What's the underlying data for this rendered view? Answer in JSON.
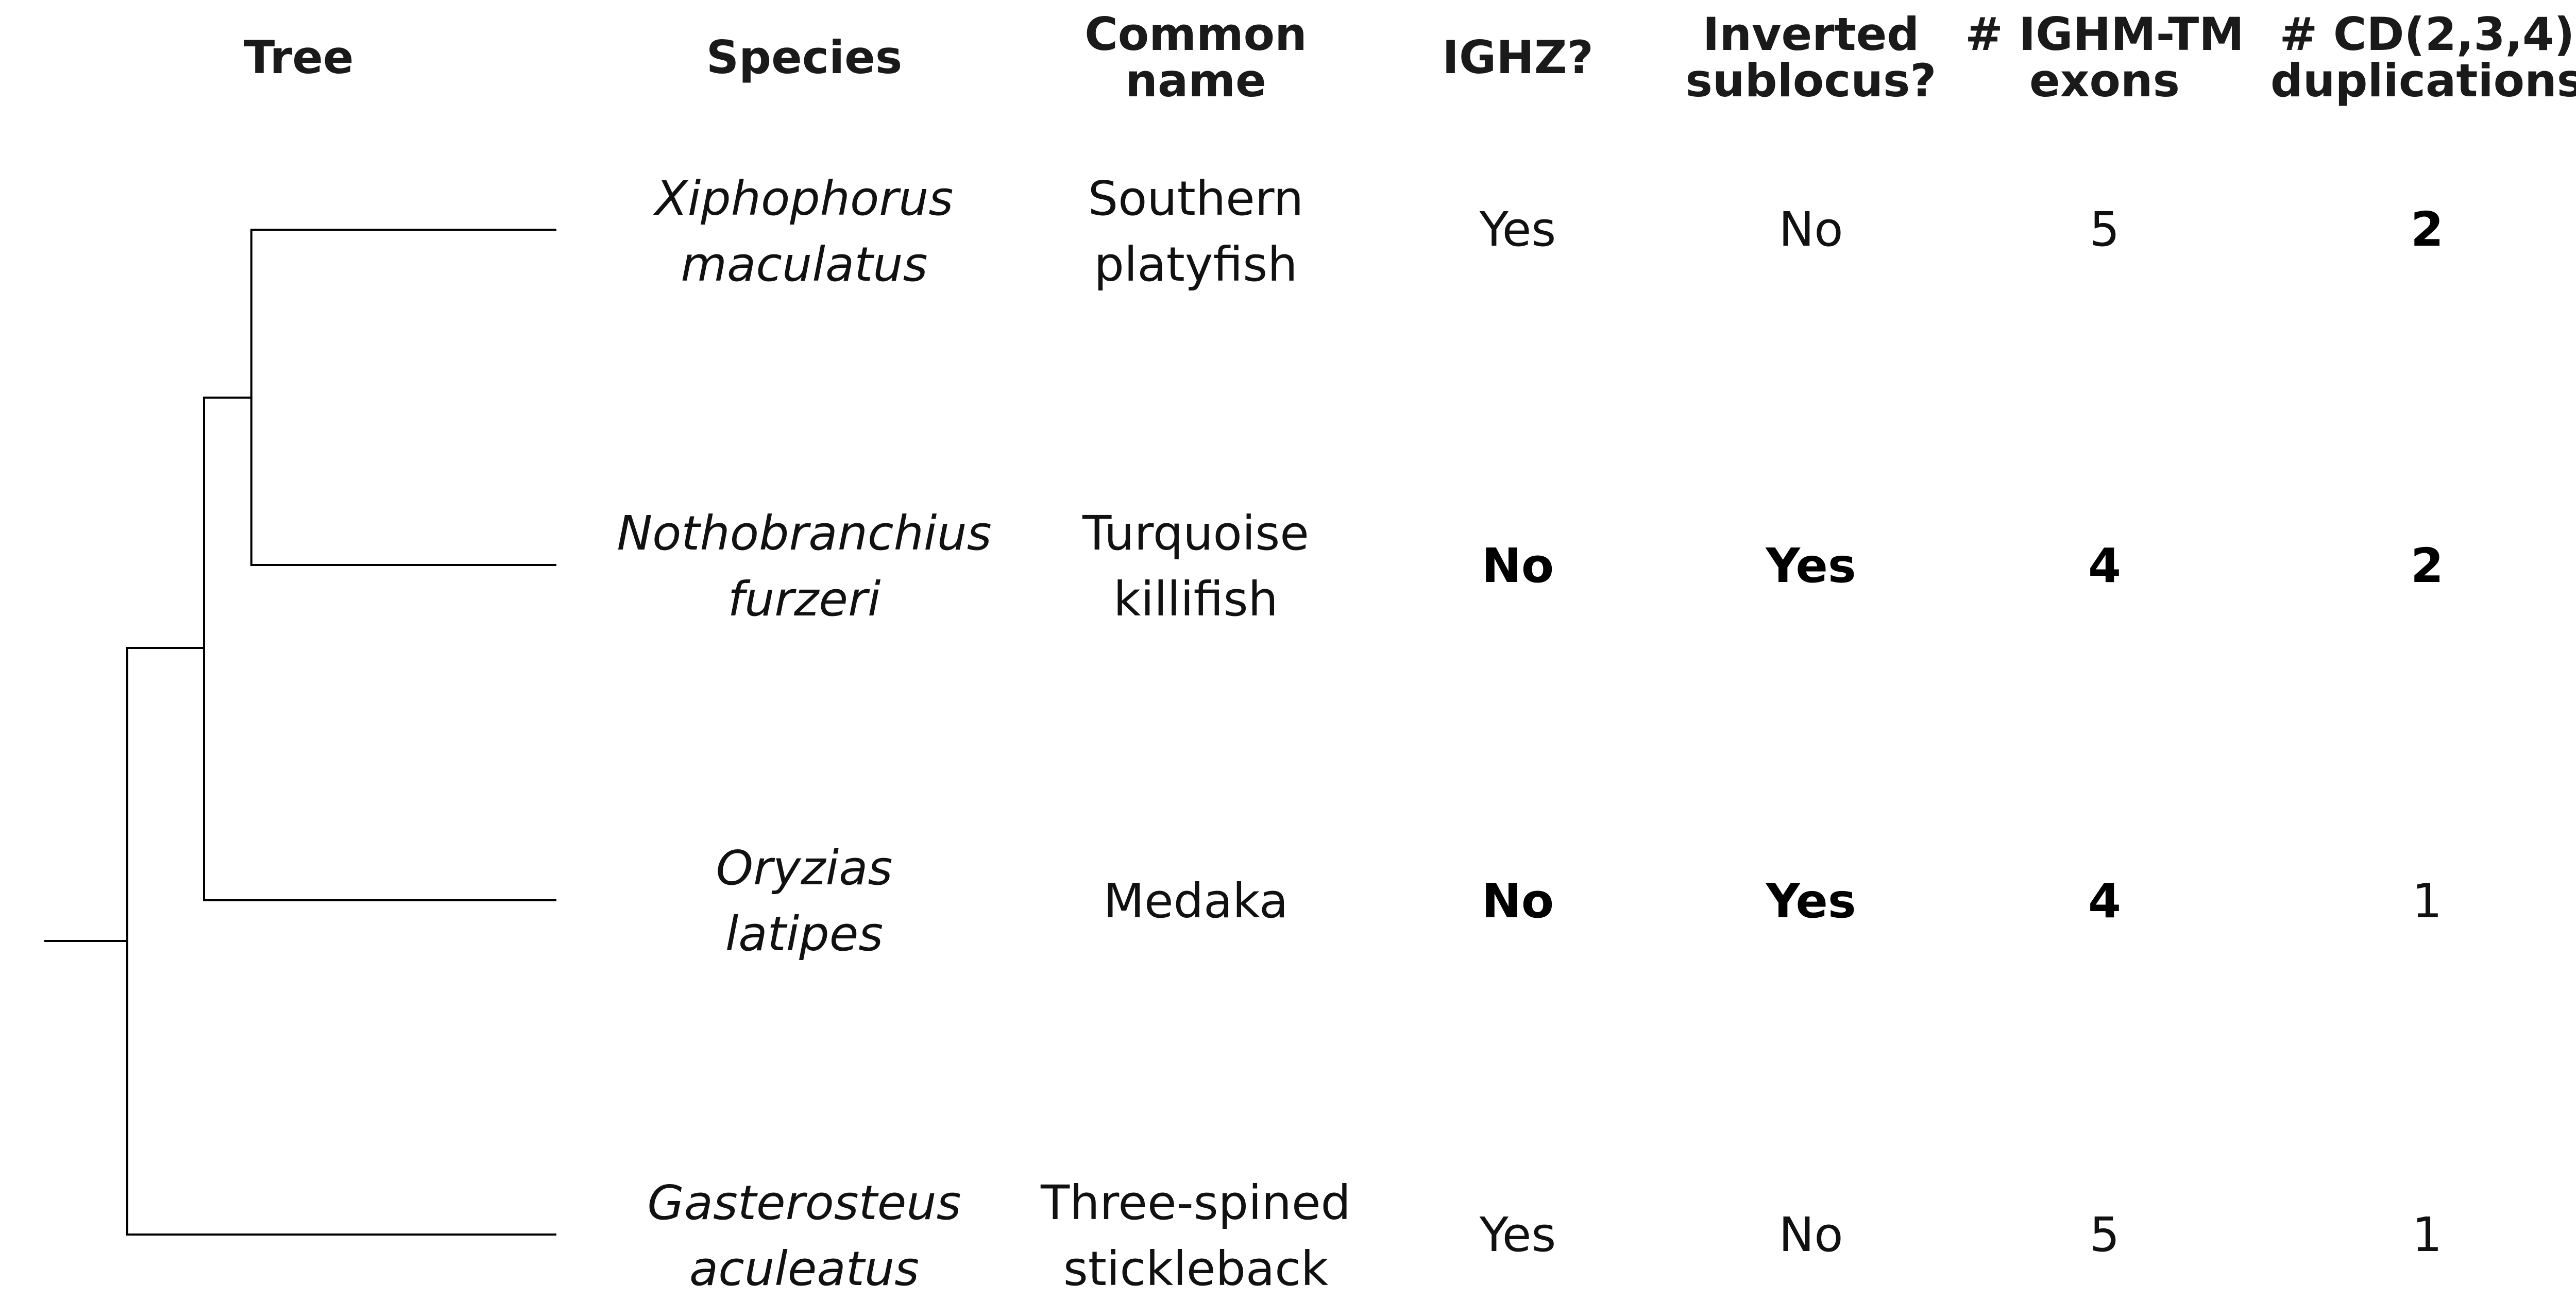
{
  "headers": {
    "tree": "Tree",
    "species": "Species",
    "common_line1": "Common",
    "common_line2": "name",
    "ighz": "IGHZ?",
    "inverted_line1": "Inverted",
    "inverted_line2": "sublocus?",
    "ighm_line1": "# IGHM-TM",
    "ighm_line2": "exons",
    "cd_line1": "# CD(2,3,4)",
    "cd_line2": "duplications"
  },
  "rows": [
    {
      "genus": "Xiphophorus",
      "species": "maculatus",
      "common_line1": "Southern",
      "common_line2": "platyfish",
      "ighz": "Yes",
      "inverted": "No",
      "ighm_exons": "5",
      "cd_dups": "2"
    },
    {
      "genus": "Nothobranchius",
      "species": "furzeri",
      "common_line1": "Turquoise",
      "common_line2": "killifish",
      "ighz": "No",
      "inverted": "Yes",
      "ighm_exons": "4",
      "cd_dups": "2"
    },
    {
      "genus": "Oryzias",
      "species": "latipes",
      "common_line1": "Medaka",
      "common_line2": "",
      "ighz": "No",
      "inverted": "Yes",
      "ighm_exons": "4",
      "cd_dups": "1"
    },
    {
      "genus": "Gasterosteus",
      "species": "aculeatus",
      "common_line1": "Three-spined",
      "common_line2": "stickleback",
      "ighz": "Yes",
      "inverted": "No",
      "ighm_exons": "5",
      "cd_dups": "1"
    }
  ]
}
